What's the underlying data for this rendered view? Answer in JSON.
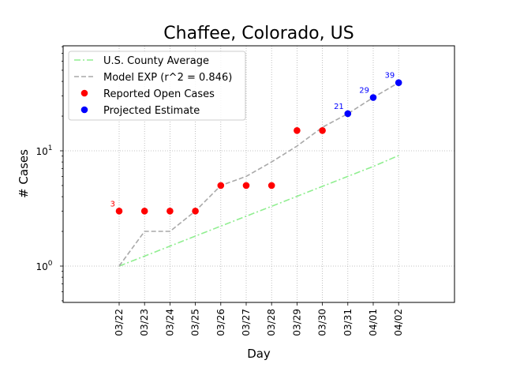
{
  "chart_data": {
    "type": "line",
    "title": "Chaffee, Colorado, US",
    "xlabel": "Day",
    "ylabel": "# Cases",
    "yscale": "log",
    "ylim": [
      0.5,
      80
    ],
    "y_ticks": [
      {
        "value": 1,
        "base": "10",
        "exp": "0"
      },
      {
        "value": 10,
        "base": "10",
        "exp": "1"
      }
    ],
    "grid": true,
    "legend_position": "top-left",
    "categories": [
      "03/22",
      "03/23",
      "03/24",
      "03/25",
      "03/26",
      "03/27",
      "03/28",
      "03/29",
      "03/30",
      "03/31",
      "04/01",
      "04/02"
    ],
    "series": [
      {
        "name": "U.S. County Average",
        "style": "dashdot",
        "color": "#90ee90",
        "values": [
          1,
          1.22,
          1.49,
          1.82,
          2.22,
          2.71,
          3.3,
          4.03,
          4.92,
          6.0,
          7.32,
          9.1
        ]
      },
      {
        "name": "Model EXP (r^2 = 0.846)",
        "style": "dashed",
        "color": "#a9a9a9",
        "values": [
          1,
          2,
          2,
          3,
          5,
          6,
          8,
          11,
          16,
          21,
          29,
          39
        ]
      },
      {
        "name": "Reported Open Cases",
        "style": "marker",
        "color": "#ff0000",
        "points": [
          {
            "x": "03/22",
            "y": 3,
            "label": "3"
          },
          {
            "x": "03/23",
            "y": 3
          },
          {
            "x": "03/24",
            "y": 3
          },
          {
            "x": "03/25",
            "y": 3
          },
          {
            "x": "03/26",
            "y": 5
          },
          {
            "x": "03/27",
            "y": 5
          },
          {
            "x": "03/28",
            "y": 5
          },
          {
            "x": "03/29",
            "y": 15
          },
          {
            "x": "03/30",
            "y": 15
          }
        ]
      },
      {
        "name": "Projected Estimate",
        "style": "marker",
        "color": "#0000ff",
        "points": [
          {
            "x": "03/31",
            "y": 21,
            "label": "21"
          },
          {
            "x": "04/01",
            "y": 29,
            "label": "29"
          },
          {
            "x": "04/02",
            "y": 39,
            "label": "39"
          }
        ]
      }
    ]
  }
}
